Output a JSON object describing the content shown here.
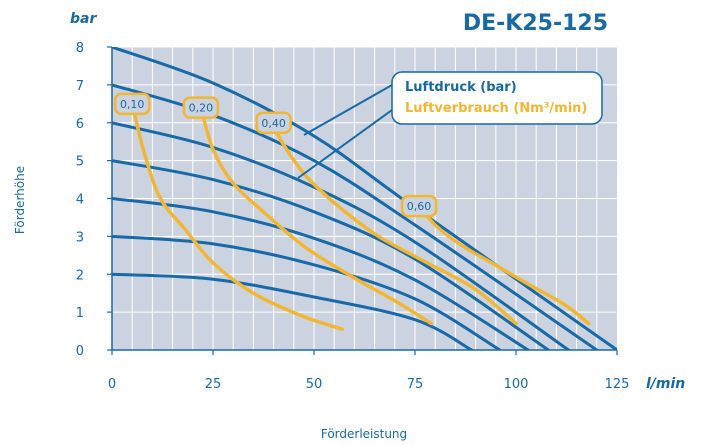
{
  "chart_data": {
    "type": "line",
    "title": "DE-K25-125",
    "y_unit": "bar",
    "x_unit": "l/min",
    "xlabel": "Förderleistung",
    "ylabel": "Förderhöhe",
    "xlim": [
      0,
      125
    ],
    "ylim": [
      0,
      8
    ],
    "x_ticks": [
      "0",
      "25",
      "50",
      "75",
      "100",
      "125"
    ],
    "y_ticks": [
      "0",
      "1",
      "2",
      "3",
      "4",
      "5",
      "6",
      "7",
      "8"
    ],
    "grid": true,
    "legend": {
      "placement": "top-right",
      "entries": [
        {
          "label": "Luftdruck (bar)",
          "color": "#1769a8"
        },
        {
          "label": "Luftverbrauch (Nm³/min)",
          "color": "#f2b731"
        }
      ]
    },
    "pressure_series": [
      {
        "points": [
          [
            0,
            2.0
          ],
          [
            25,
            1.87
          ],
          [
            50,
            1.4
          ],
          [
            75,
            0.8
          ],
          [
            89,
            0.0
          ]
        ]
      },
      {
        "points": [
          [
            0,
            3.0
          ],
          [
            25,
            2.8
          ],
          [
            50,
            2.25
          ],
          [
            75,
            1.35
          ],
          [
            96,
            0.0
          ]
        ]
      },
      {
        "points": [
          [
            0,
            4.0
          ],
          [
            25,
            3.65
          ],
          [
            50,
            2.95
          ],
          [
            75,
            1.85
          ],
          [
            103,
            0.0
          ]
        ]
      },
      {
        "points": [
          [
            0,
            5.0
          ],
          [
            25,
            4.5
          ],
          [
            50,
            3.65
          ],
          [
            75,
            2.4
          ],
          [
            108,
            0.0
          ]
        ]
      },
      {
        "points": [
          [
            0,
            6.0
          ],
          [
            25,
            5.35
          ],
          [
            50,
            4.3
          ],
          [
            75,
            2.85
          ],
          [
            113,
            0.0
          ]
        ]
      },
      {
        "points": [
          [
            0,
            7.0
          ],
          [
            25,
            6.2
          ],
          [
            50,
            5.0
          ],
          [
            75,
            3.3
          ],
          [
            120,
            0.0
          ]
        ]
      },
      {
        "points": [
          [
            0,
            8.0
          ],
          [
            25,
            7.05
          ],
          [
            50,
            5.65
          ],
          [
            75,
            3.75
          ],
          [
            125,
            0.0
          ]
        ]
      }
    ],
    "air_consumption_series": [
      {
        "label": "0,10",
        "points": [
          [
            5,
            6.5
          ],
          [
            8,
            5.2
          ],
          [
            12,
            4.0
          ],
          [
            18,
            3.2
          ],
          [
            25,
            2.3
          ],
          [
            35,
            1.5
          ],
          [
            47,
            0.9
          ],
          [
            57,
            0.55
          ]
        ]
      },
      {
        "label": "0,20",
        "points": [
          [
            22,
            6.4
          ],
          [
            25,
            5.3
          ],
          [
            30,
            4.4
          ],
          [
            38,
            3.6
          ],
          [
            48,
            2.7
          ],
          [
            60,
            1.9
          ],
          [
            70,
            1.3
          ],
          [
            79,
            0.7
          ]
        ]
      },
      {
        "label": "0,40",
        "points": [
          [
            40,
            6.0
          ],
          [
            42,
            5.5
          ],
          [
            48,
            4.6
          ],
          [
            56,
            3.8
          ],
          [
            66,
            3.0
          ],
          [
            78,
            2.3
          ],
          [
            90,
            1.6
          ],
          [
            100,
            0.7
          ]
        ]
      },
      {
        "label": "0,60",
        "points": [
          [
            76,
            3.8
          ],
          [
            80,
            3.3
          ],
          [
            86,
            2.8
          ],
          [
            94,
            2.3
          ],
          [
            102,
            1.8
          ],
          [
            112,
            1.2
          ],
          [
            118,
            0.7
          ]
        ]
      }
    ]
  }
}
